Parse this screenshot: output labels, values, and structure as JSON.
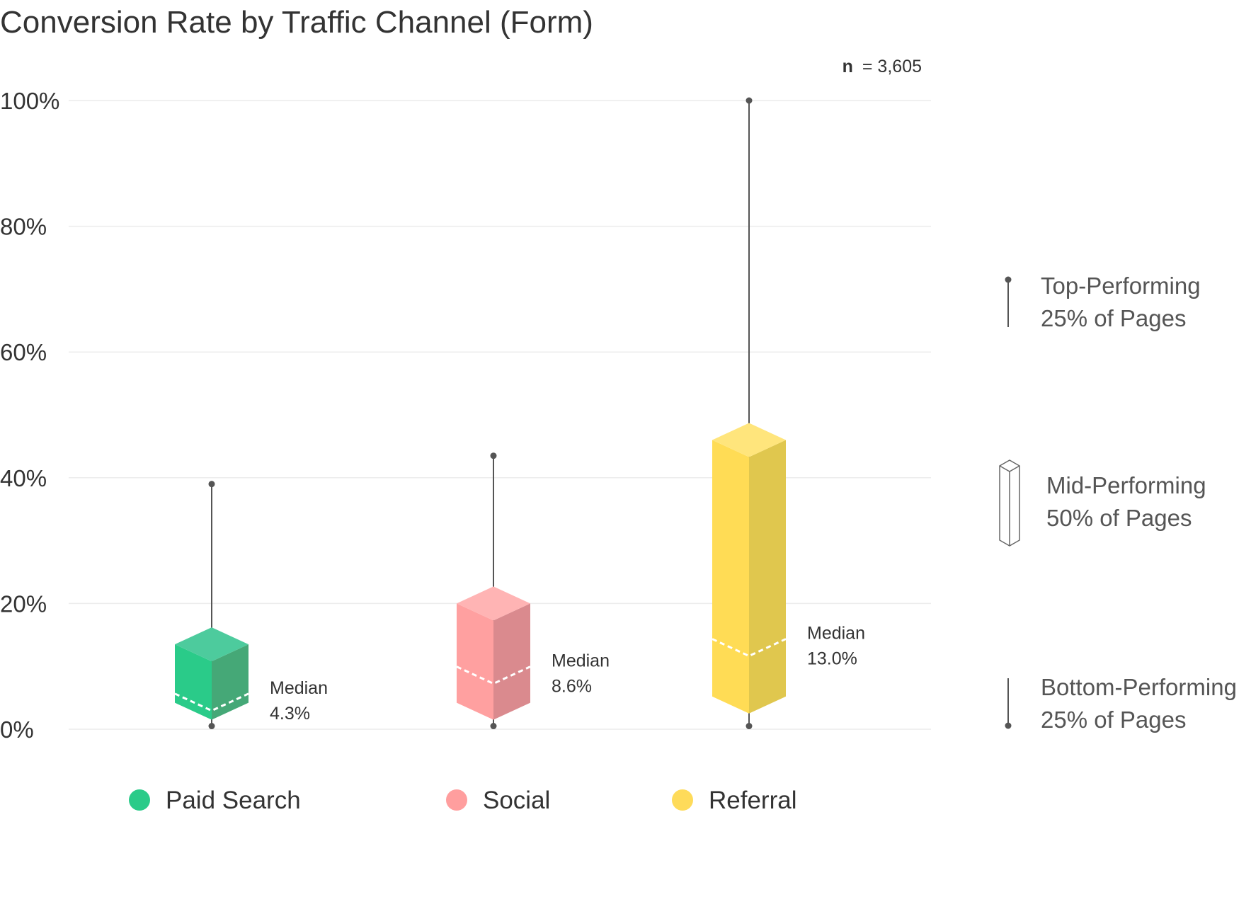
{
  "chart_data": {
    "type": "box",
    "title": "Conversion Rate by Traffic Channel (Form)",
    "sample_size_label": "n",
    "sample_size_value": "= 3,605",
    "ylim": [
      0,
      100
    ],
    "y_ticks": [
      {
        "value": 0,
        "label": "0%"
      },
      {
        "value": 20,
        "label": "20%"
      },
      {
        "value": 40,
        "label": "40%"
      },
      {
        "value": 60,
        "label": "60%"
      },
      {
        "value": 80,
        "label": "80%"
      },
      {
        "value": 100,
        "label": "100%"
      }
    ],
    "grid": true,
    "median_label": "Median",
    "series": [
      {
        "name": "Paid Search",
        "color": "#2ACB89",
        "color_front": "#2ACB89",
        "color_side": "#45A877",
        "color_top": "#4DCB9D",
        "min": 0.5,
        "q1": 1.5,
        "median": 4.3,
        "median_label": "4.3%",
        "q3": 13.5,
        "max": 39
      },
      {
        "name": "Social",
        "color": "#FF9E9E",
        "color_front": "#FFA0A0",
        "color_side": "#DA8A8E",
        "color_top": "#FFB4B4",
        "min": 0.5,
        "q1": 1.5,
        "median": 8.6,
        "median_label": "8.6%",
        "q3": 20,
        "max": 43.5
      },
      {
        "name": "Referral",
        "color": "#FEDB5A",
        "color_front": "#FFDC55",
        "color_side": "#E0C74E",
        "color_top": "#FFE57C",
        "min": 0.5,
        "q1": 2.5,
        "median": 13.0,
        "median_label": "13.0%",
        "q3": 46,
        "max": 100
      }
    ],
    "legend_position": "bottom",
    "key": [
      {
        "line1": "Top-Performing",
        "line2": "25% of Pages"
      },
      {
        "line1": "Mid-Performing",
        "line2": "50% of Pages"
      },
      {
        "line1": "Bottom-Performing",
        "line2": "25% of Pages"
      }
    ]
  }
}
